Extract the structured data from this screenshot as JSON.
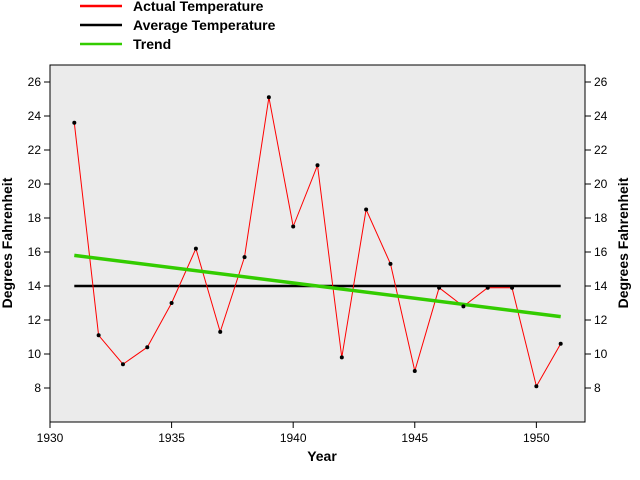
{
  "chart_data": {
    "type": "line",
    "title": "",
    "xlabel": "Year",
    "ylabel": "Degrees Fahrenheit",
    "ylabel_right": "Degrees Fahrenheit",
    "xlim": [
      1930,
      1952
    ],
    "ylim": [
      6,
      27
    ],
    "x_ticks": [
      1930,
      1935,
      1940,
      1945,
      1950
    ],
    "y_ticks": [
      8,
      10,
      12,
      14,
      16,
      18,
      20,
      22,
      24,
      26
    ],
    "grid": false,
    "legend_position": "top-left outside plot",
    "legend": [
      {
        "name": "Actual Temperature",
        "color": "#ff0000"
      },
      {
        "name": "Average Temperature",
        "color": "#000000"
      },
      {
        "name": "Trend",
        "color": "#33cc00"
      }
    ],
    "series": [
      {
        "name": "Actual Temperature",
        "color": "#ff0000",
        "x": [
          1931,
          1932,
          1933,
          1934,
          1935,
          1936,
          1937,
          1938,
          1939,
          1940,
          1941,
          1942,
          1943,
          1944,
          1945,
          1946,
          1947,
          1948,
          1949,
          1950,
          1951
        ],
        "y": [
          23.6,
          11.1,
          9.4,
          10.4,
          13.0,
          16.2,
          11.3,
          15.7,
          25.1,
          17.5,
          21.1,
          9.8,
          18.5,
          15.3,
          9.0,
          13.9,
          12.8,
          13.9,
          13.9,
          8.1,
          10.6
        ]
      },
      {
        "name": "Average Temperature",
        "color": "#000000",
        "x": [
          1931,
          1951
        ],
        "y": [
          14.0,
          14.0
        ]
      },
      {
        "name": "Trend",
        "color": "#33cc00",
        "x": [
          1931,
          1951
        ],
        "y": [
          15.8,
          12.2
        ]
      }
    ]
  }
}
